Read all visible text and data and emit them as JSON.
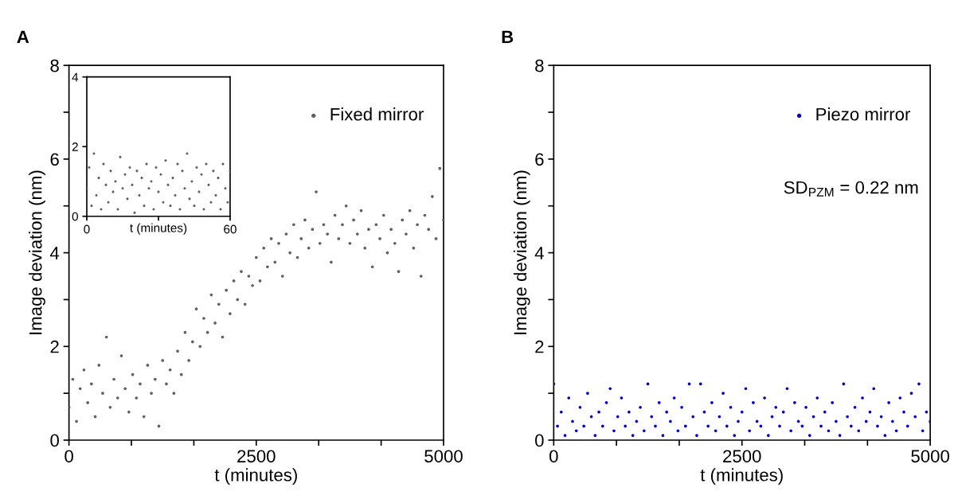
{
  "chart_data": [
    {
      "type": "scatter",
      "title": "A",
      "xlabel": "t (minutes)",
      "ylabel": "Image deviation (nm)",
      "xlim": [
        0,
        5000
      ],
      "ylim": [
        0,
        8
      ],
      "xticks": [
        0,
        {
          "value": 833,
          "label": null
        },
        {
          "value": 1667,
          "label": null
        },
        2500,
        {
          "value": 3333,
          "label": null
        },
        {
          "value": 4167,
          "label": null
        },
        5000
      ],
      "yticks": [
        0,
        {
          "value": 1,
          "label": null
        },
        2,
        {
          "value": 3,
          "label": null
        },
        4,
        {
          "value": 5,
          "label": null
        },
        6,
        {
          "value": 7,
          "label": null
        },
        8
      ],
      "legend": "top right",
      "marker": "circle",
      "grid": false,
      "series": [
        {
          "name": "Fixed mirror",
          "color": "#606060",
          "x": [
            0,
            50,
            100,
            150,
            200,
            250,
            300,
            350,
            400,
            450,
            500,
            550,
            600,
            650,
            700,
            750,
            800,
            850,
            900,
            950,
            1000,
            1050,
            1100,
            1150,
            1200,
            1250,
            1300,
            1350,
            1400,
            1450,
            1500,
            1550,
            1600,
            1650,
            1700,
            1750,
            1800,
            1850,
            1900,
            1950,
            2000,
            2050,
            2100,
            2150,
            2200,
            2250,
            2300,
            2350,
            2400,
            2450,
            2500,
            2550,
            2600,
            2650,
            2700,
            2750,
            2800,
            2850,
            2900,
            2950,
            3000,
            3050,
            3100,
            3150,
            3200,
            3250,
            3300,
            3350,
            3400,
            3450,
            3500,
            3550,
            3600,
            3650,
            3700,
            3750,
            3800,
            3850,
            3900,
            3950,
            4000,
            4050,
            4100,
            4150,
            4200,
            4250,
            4300,
            4350,
            4400,
            4450,
            4500,
            4550,
            4600,
            4650,
            4700,
            4750,
            4800,
            4850,
            4900,
            4950,
            5000
          ],
          "values": [
            0.7,
            1.3,
            0.4,
            1.1,
            1.5,
            0.8,
            1.2,
            0.5,
            1.6,
            1.0,
            2.2,
            0.7,
            1.3,
            0.9,
            1.8,
            1.1,
            0.6,
            1.4,
            0.9,
            1.2,
            0.5,
            1.6,
            1.0,
            1.3,
            0.3,
            1.7,
            1.2,
            1.5,
            1.0,
            1.9,
            1.4,
            2.3,
            1.7,
            2.1,
            2.8,
            2.0,
            2.6,
            2.3,
            3.1,
            2.5,
            2.9,
            2.2,
            3.2,
            2.7,
            3.4,
            3.0,
            3.6,
            2.9,
            3.5,
            3.3,
            3.9,
            3.4,
            4.1,
            3.7,
            4.3,
            3.8,
            4.2,
            3.5,
            4.4,
            4.0,
            4.6,
            3.9,
            4.3,
            4.7,
            4.1,
            4.5,
            5.3,
            4.2,
            4.6,
            4.4,
            3.8,
            4.8,
            4.3,
            4.6,
            5.0,
            4.2,
            4.7,
            4.4,
            4.9,
            4.1,
            4.5,
            3.7,
            4.6,
            4.3,
            4.8,
            4.0,
            4.5,
            4.2,
            3.6,
            4.7,
            4.4,
            4.9,
            4.1,
            4.6,
            3.5,
            4.8,
            4.5,
            5.2,
            4.3,
            5.8,
            4.7
          ]
        }
      ]
    },
    {
      "type": "scatter",
      "xlabel": "t (minutes)",
      "xlim": [
        0,
        60
      ],
      "ylim": [
        0,
        4
      ],
      "xticks": [
        0,
        {
          "value": 30,
          "label": null
        },
        60
      ],
      "yticks": [
        0,
        2,
        4
      ],
      "marker": "circle",
      "grid": false,
      "series": [
        {
          "color": "#606060",
          "x": [
            0,
            1,
            2,
            3,
            4,
            5,
            6,
            7,
            8,
            9,
            10,
            11,
            12,
            13,
            14,
            15,
            16,
            17,
            18,
            19,
            20,
            21,
            22,
            23,
            24,
            25,
            26,
            27,
            28,
            29,
            30,
            31,
            32,
            33,
            34,
            35,
            36,
            37,
            38,
            39,
            40,
            41,
            42,
            43,
            44,
            45,
            46,
            47,
            48,
            49,
            50,
            51,
            52,
            53,
            54,
            55,
            56,
            57,
            58,
            59,
            60
          ],
          "values": [
            0.8,
            1.4,
            0.3,
            1.8,
            0.6,
            1.1,
            0.2,
            1.5,
            0.9,
            0.4,
            1.3,
            0.7,
            1.0,
            0.2,
            1.7,
            0.8,
            1.2,
            0.5,
            1.4,
            0.9,
            0.1,
            1.3,
            0.6,
            1.1,
            0.3,
            1.5,
            0.8,
            1.0,
            0.2,
            1.4,
            0.7,
            1.2,
            0.4,
            1.6,
            0.9,
            0.3,
            1.1,
            0.6,
            1.5,
            0.2,
            1.3,
            0.8,
            1.8,
            0.5,
            1.0,
            0.3,
            1.4,
            0.7,
            1.2,
            0.2,
            1.5,
            0.9,
            0.4,
            1.3,
            0.6,
            1.1,
            0.2,
            1.5,
            0.8,
            0.4,
            1.3
          ]
        }
      ]
    },
    {
      "type": "scatter",
      "title": "B",
      "xlabel": "t (minutes)",
      "ylabel": "Image deviation (nm)",
      "xlim": [
        0,
        5000
      ],
      "ylim": [
        0,
        8
      ],
      "xticks": [
        0,
        {
          "value": 833,
          "label": null
        },
        {
          "value": 1667,
          "label": null
        },
        2500,
        {
          "value": 3333,
          "label": null
        },
        {
          "value": 4167,
          "label": null
        },
        5000
      ],
      "yticks": [
        0,
        {
          "value": 1,
          "label": null
        },
        2,
        {
          "value": 3,
          "label": null
        },
        4,
        {
          "value": 5,
          "label": null
        },
        6,
        {
          "value": 7,
          "label": null
        },
        8
      ],
      "legend": "top right",
      "marker": "circle",
      "grid": false,
      "annotations": [
        "SD$_{PZM}$ = 0.22 nm"
      ],
      "series": [
        {
          "name": "Piezo mirror",
          "color": "#0000cc",
          "x": [
            0,
            50,
            100,
            150,
            200,
            250,
            300,
            350,
            400,
            450,
            500,
            550,
            600,
            650,
            700,
            750,
            800,
            850,
            900,
            950,
            1000,
            1050,
            1100,
            1150,
            1200,
            1250,
            1300,
            1350,
            1400,
            1450,
            1500,
            1550,
            1600,
            1650,
            1700,
            1750,
            1800,
            1850,
            1900,
            1950,
            2000,
            2050,
            2100,
            2150,
            2200,
            2250,
            2300,
            2350,
            2400,
            2450,
            2500,
            2550,
            2600,
            2650,
            2700,
            2750,
            2800,
            2850,
            2900,
            2950,
            3000,
            3050,
            3100,
            3150,
            3200,
            3250,
            3300,
            3350,
            3400,
            3450,
            3500,
            3550,
            3600,
            3650,
            3700,
            3750,
            3800,
            3850,
            3900,
            3950,
            4000,
            4050,
            4100,
            4150,
            4200,
            4250,
            4300,
            4350,
            4400,
            4450,
            4500,
            4550,
            4600,
            4650,
            4700,
            4750,
            4800,
            4850,
            4900,
            4950,
            5000
          ],
          "values": [
            1.2,
            0.3,
            0.6,
            0.1,
            0.9,
            0.4,
            0.2,
            0.7,
            0.3,
            1.0,
            0.5,
            0.1,
            0.6,
            0.3,
            0.8,
            1.1,
            0.2,
            0.5,
            0.9,
            0.3,
            0.6,
            0.1,
            0.4,
            0.7,
            0.2,
            1.2,
            0.5,
            0.3,
            0.8,
            0.1,
            0.6,
            0.4,
            0.9,
            0.2,
            0.7,
            0.3,
            1.2,
            0.5,
            0.1,
            1.2,
            0.6,
            0.3,
            0.8,
            0.2,
            0.5,
            1.0,
            0.3,
            0.7,
            0.1,
            0.4,
            0.6,
            1.1,
            0.2,
            0.8,
            0.4,
            0.3,
            0.9,
            0.1,
            0.5,
            0.7,
            0.3,
            0.6,
            1.1,
            0.2,
            0.8,
            0.4,
            0.3,
            0.7,
            0.1,
            0.5,
            0.9,
            0.3,
            0.6,
            0.2,
            0.8,
            0.4,
            0.1,
            1.2,
            0.5,
            0.3,
            0.7,
            0.2,
            0.9,
            0.4,
            0.6,
            1.1,
            0.3,
            0.5,
            0.1,
            0.8,
            0.4,
            0.2,
            0.9,
            0.6,
            0.3,
            1.0,
            0.5,
            1.2,
            0.2,
            0.6,
            0.4
          ]
        }
      ]
    }
  ]
}
